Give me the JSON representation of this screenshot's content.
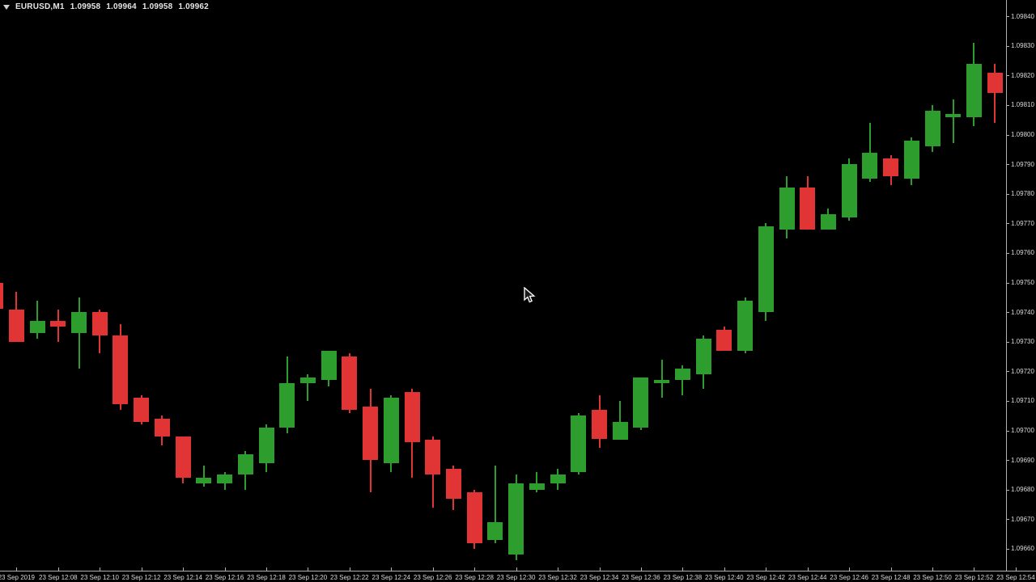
{
  "title": {
    "symbol": "EURUSD,M1",
    "open": "1.09958",
    "high": "1.09964",
    "low": "1.09958",
    "close": "1.09962"
  },
  "colors": {
    "background": "#000000",
    "bull": "#2d9e2d",
    "bear": "#e13434",
    "axis_line": "#b2b2b2",
    "axis_text": "#d9d9d9"
  },
  "price_axis": {
    "labels": [
      "1.09840",
      "1.09830",
      "1.09820",
      "1.09810",
      "1.09800",
      "1.09790",
      "1.09780",
      "1.09770",
      "1.09760",
      "1.09750",
      "1.09740",
      "1.09730",
      "1.09720",
      "1.09710",
      "1.09700",
      "1.09690",
      "1.09680",
      "1.09670",
      "1.09660"
    ]
  },
  "time_axis": {
    "labels": [
      {
        "text": "23 Sep 2019",
        "slot": 1
      },
      {
        "text": "23 Sep 12:08",
        "slot": 3
      },
      {
        "text": "23 Sep 12:10",
        "slot": 5
      },
      {
        "text": "23 Sep 12:12",
        "slot": 7
      },
      {
        "text": "23 Sep 12:14",
        "slot": 9
      },
      {
        "text": "23 Sep 12:16",
        "slot": 11
      },
      {
        "text": "23 Sep 12:18",
        "slot": 13
      },
      {
        "text": "23 Sep 12:20",
        "slot": 15
      },
      {
        "text": "23 Sep 12:22",
        "slot": 17
      },
      {
        "text": "23 Sep 12:24",
        "slot": 19
      },
      {
        "text": "23 Sep 12:26",
        "slot": 21
      },
      {
        "text": "23 Sep 12:28",
        "slot": 23
      },
      {
        "text": "23 Sep 12:30",
        "slot": 25
      },
      {
        "text": "23 Sep 12:32",
        "slot": 27
      },
      {
        "text": "23 Sep 12:34",
        "slot": 29
      },
      {
        "text": "23 Sep 12:36",
        "slot": 31
      },
      {
        "text": "23 Sep 12:38",
        "slot": 33
      },
      {
        "text": "23 Sep 12:40",
        "slot": 35
      },
      {
        "text": "23 Sep 12:42",
        "slot": 37
      },
      {
        "text": "23 Sep 12:44",
        "slot": 39
      },
      {
        "text": "23 Sep 12:46",
        "slot": 41
      },
      {
        "text": "23 Sep 12:48",
        "slot": 43
      },
      {
        "text": "23 Sep 12:50",
        "slot": 45
      },
      {
        "text": "23 Sep 12:52",
        "slot": 47
      },
      {
        "text": "23 Sep 12:54",
        "slot": 49
      }
    ]
  },
  "chart_data": {
    "type": "candlestick",
    "symbol": "EURUSD",
    "timeframe": "M1",
    "date": "23 Sep 2019",
    "grid": false,
    "legend": false,
    "ylim": [
      1.096526,
      1.098455
    ],
    "candles": [
      {
        "t": "12:05",
        "o": 1.0975,
        "h": 1.09751,
        "l": 1.0974,
        "c": 1.09741
      },
      {
        "t": "12:06",
        "o": 1.09741,
        "h": 1.09747,
        "l": 1.0973,
        "c": 1.0973
      },
      {
        "t": "12:07",
        "o": 1.09733,
        "h": 1.09744,
        "l": 1.09731,
        "c": 1.09737
      },
      {
        "t": "12:08",
        "o": 1.09737,
        "h": 1.09741,
        "l": 1.0973,
        "c": 1.09735
      },
      {
        "t": "12:09",
        "o": 1.09733,
        "h": 1.09745,
        "l": 1.09721,
        "c": 1.0974
      },
      {
        "t": "12:10",
        "o": 1.0974,
        "h": 1.09741,
        "l": 1.09726,
        "c": 1.09732
      },
      {
        "t": "12:11",
        "o": 1.09732,
        "h": 1.09736,
        "l": 1.09707,
        "c": 1.09709
      },
      {
        "t": "12:12",
        "o": 1.09711,
        "h": 1.09712,
        "l": 1.09702,
        "c": 1.09703
      },
      {
        "t": "12:13",
        "o": 1.09704,
        "h": 1.09705,
        "l": 1.09695,
        "c": 1.09698
      },
      {
        "t": "12:14",
        "o": 1.09698,
        "h": 1.09698,
        "l": 1.09682,
        "c": 1.09684
      },
      {
        "t": "12:15",
        "o": 1.09682,
        "h": 1.09688,
        "l": 1.09681,
        "c": 1.09684
      },
      {
        "t": "12:16",
        "o": 1.09682,
        "h": 1.09686,
        "l": 1.0968,
        "c": 1.09685
      },
      {
        "t": "12:17",
        "o": 1.09685,
        "h": 1.09693,
        "l": 1.0968,
        "c": 1.09692
      },
      {
        "t": "12:18",
        "o": 1.09689,
        "h": 1.09702,
        "l": 1.09686,
        "c": 1.09701
      },
      {
        "t": "12:19",
        "o": 1.09701,
        "h": 1.09725,
        "l": 1.09699,
        "c": 1.09716
      },
      {
        "t": "12:20",
        "o": 1.09716,
        "h": 1.09719,
        "l": 1.0971,
        "c": 1.09718
      },
      {
        "t": "12:21",
        "o": 1.09717,
        "h": 1.09727,
        "l": 1.09715,
        "c": 1.09727
      },
      {
        "t": "12:22",
        "o": 1.09725,
        "h": 1.09726,
        "l": 1.09706,
        "c": 1.09707
      },
      {
        "t": "12:23",
        "o": 1.09708,
        "h": 1.09714,
        "l": 1.09679,
        "c": 1.0969
      },
      {
        "t": "12:24",
        "o": 1.09689,
        "h": 1.09712,
        "l": 1.09686,
        "c": 1.09711
      },
      {
        "t": "12:25",
        "o": 1.09713,
        "h": 1.09714,
        "l": 1.09684,
        "c": 1.09696
      },
      {
        "t": "12:26",
        "o": 1.09697,
        "h": 1.09698,
        "l": 1.09674,
        "c": 1.09685
      },
      {
        "t": "12:27",
        "o": 1.09687,
        "h": 1.09688,
        "l": 1.09673,
        "c": 1.09677
      },
      {
        "t": "12:28",
        "o": 1.09679,
        "h": 1.0968,
        "l": 1.0966,
        "c": 1.09662
      },
      {
        "t": "12:29",
        "o": 1.09663,
        "h": 1.09688,
        "l": 1.09662,
        "c": 1.09669
      },
      {
        "t": "12:30",
        "o": 1.09658,
        "h": 1.09685,
        "l": 1.09656,
        "c": 1.09682
      },
      {
        "t": "12:31",
        "o": 1.0968,
        "h": 1.09686,
        "l": 1.09679,
        "c": 1.09682
      },
      {
        "t": "12:32",
        "o": 1.09682,
        "h": 1.09687,
        "l": 1.0968,
        "c": 1.09685
      },
      {
        "t": "12:33",
        "o": 1.09686,
        "h": 1.09706,
        "l": 1.09685,
        "c": 1.09705
      },
      {
        "t": "12:34",
        "o": 1.09707,
        "h": 1.09712,
        "l": 1.09694,
        "c": 1.09697
      },
      {
        "t": "12:35",
        "o": 1.09697,
        "h": 1.0971,
        "l": 1.09697,
        "c": 1.09703
      },
      {
        "t": "12:36",
        "o": 1.09701,
        "h": 1.09718,
        "l": 1.097,
        "c": 1.09718
      },
      {
        "t": "12:37",
        "o": 1.09716,
        "h": 1.09724,
        "l": 1.09711,
        "c": 1.09717
      },
      {
        "t": "12:38",
        "o": 1.09717,
        "h": 1.09722,
        "l": 1.09712,
        "c": 1.09721
      },
      {
        "t": "12:39",
        "o": 1.09719,
        "h": 1.09732,
        "l": 1.09714,
        "c": 1.09731
      },
      {
        "t": "12:40",
        "o": 1.09734,
        "h": 1.09735,
        "l": 1.09727,
        "c": 1.09727
      },
      {
        "t": "12:41",
        "o": 1.09727,
        "h": 1.09745,
        "l": 1.09726,
        "c": 1.09744
      },
      {
        "t": "12:42",
        "o": 1.0974,
        "h": 1.0977,
        "l": 1.09737,
        "c": 1.09769
      },
      {
        "t": "12:43",
        "o": 1.09768,
        "h": 1.09786,
        "l": 1.09765,
        "c": 1.09782
      },
      {
        "t": "12:44",
        "o": 1.09782,
        "h": 1.09786,
        "l": 1.09768,
        "c": 1.09768
      },
      {
        "t": "12:45",
        "o": 1.09768,
        "h": 1.09775,
        "l": 1.09768,
        "c": 1.09773
      },
      {
        "t": "12:46",
        "o": 1.09772,
        "h": 1.09792,
        "l": 1.09771,
        "c": 1.0979
      },
      {
        "t": "12:47",
        "o": 1.09785,
        "h": 1.09804,
        "l": 1.09784,
        "c": 1.09794
      },
      {
        "t": "12:48",
        "o": 1.09792,
        "h": 1.09793,
        "l": 1.09783,
        "c": 1.09786
      },
      {
        "t": "12:49",
        "o": 1.09785,
        "h": 1.09799,
        "l": 1.09783,
        "c": 1.09798
      },
      {
        "t": "12:50",
        "o": 1.09796,
        "h": 1.0981,
        "l": 1.09794,
        "c": 1.09808
      },
      {
        "t": "12:51",
        "o": 1.09806,
        "h": 1.09812,
        "l": 1.09797,
        "c": 1.09807
      },
      {
        "t": "12:52",
        "o": 1.09806,
        "h": 1.09831,
        "l": 1.09803,
        "c": 1.09824
      },
      {
        "t": "12:53",
        "o": 1.09821,
        "h": 1.09824,
        "l": 1.09804,
        "c": 1.09814
      }
    ]
  }
}
